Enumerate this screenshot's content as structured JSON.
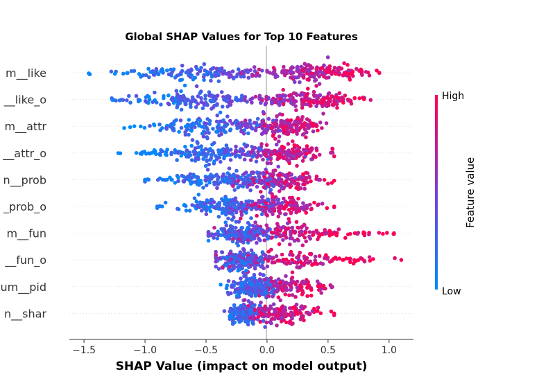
{
  "chart_data": {
    "type": "scatter",
    "subtype": "shap-beeswarm",
    "title": "Global SHAP Values for Top 10 Features",
    "xlabel": "SHAP Value (impact on model output)",
    "xlim": [
      -1.62,
      1.2
    ],
    "xticks": [
      -1.5,
      -1.0,
      -0.5,
      0.0,
      0.5,
      1.0
    ],
    "xtick_labels": [
      "−1.5",
      "−1.0",
      "−0.5",
      "0.0",
      "0.5",
      "1.0"
    ],
    "colorbar": {
      "title": "Feature value",
      "high_label": "High",
      "low_label": "Low",
      "low_color": "#008bfb",
      "high_color": "#ff0052"
    },
    "features": [
      {
        "label": "m__like",
        "min": -1.52,
        "max": 0.92,
        "neg_mean": -0.6,
        "pos_mean": 0.38,
        "outliers": [
          0.92
        ]
      },
      {
        "label": "__like_o",
        "min": -1.47,
        "max": 0.86,
        "neg_mean": -0.6,
        "pos_mean": 0.35,
        "outliers": []
      },
      {
        "label": "m__attr",
        "min": -1.17,
        "max": 0.55,
        "neg_mean": -0.45,
        "pos_mean": 0.15,
        "outliers": []
      },
      {
        "label": "__attr_o",
        "min": -1.22,
        "max": 0.55,
        "neg_mean": -0.42,
        "pos_mean": 0.15,
        "outliers": []
      },
      {
        "label": "n__prob",
        "min": -1.0,
        "max": 0.55,
        "neg_mean": -0.35,
        "pos_mean": 0.12,
        "outliers": [
          -1.0,
          -0.97,
          -0.82
        ]
      },
      {
        "label": "_prob_o",
        "min": -0.9,
        "max": 0.55,
        "neg_mean": -0.35,
        "pos_mean": 0.1,
        "outliers": [
          -0.9,
          -0.86,
          0.55
        ]
      },
      {
        "label": "m__fun",
        "min": -0.48,
        "max": 1.04,
        "neg_mean": -0.2,
        "pos_mean": 0.15,
        "outliers": [
          0.72,
          0.8,
          1.04
        ]
      },
      {
        "label": "__fun_o",
        "min": -0.42,
        "max": 1.1,
        "neg_mean": -0.2,
        "pos_mean": 0.15,
        "outliers": [
          0.62,
          0.75,
          1.1
        ]
      },
      {
        "label": "um__pid",
        "min": -0.38,
        "max": 0.55,
        "neg_mean": -0.12,
        "pos_mean": 0.15,
        "outliers": []
      },
      {
        "label": "n__shar",
        "min": -0.35,
        "max": 0.55,
        "neg_mean": -0.18,
        "pos_mean": 0.1,
        "outliers": [
          0.55
        ]
      }
    ]
  }
}
